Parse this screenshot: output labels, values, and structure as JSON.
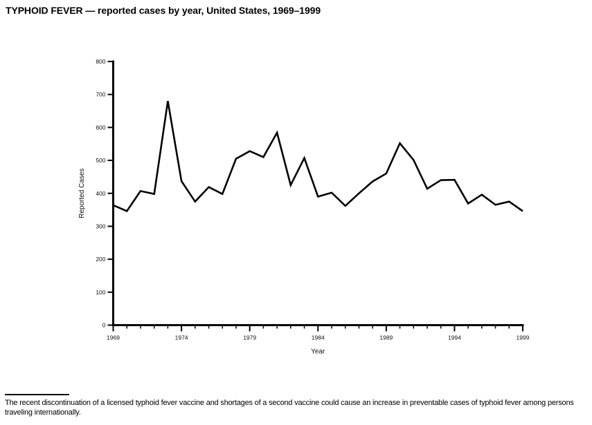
{
  "title": "TYPHOID FEVER — reported cases by year, United States, 1969–1999",
  "footnote": "The recent discontinuation of a licensed typhoid fever vaccine and shortages of a second vaccine could cause an increase in preventable cases of typhoid fever among persons traveling internationally.",
  "chart_data": {
    "type": "line",
    "title": "TYPHOID FEVER — reported cases by year, United States, 1969–1999",
    "xlabel": "Year",
    "ylabel": "Reported Cases",
    "x": [
      1969,
      1970,
      1971,
      1972,
      1973,
      1974,
      1975,
      1976,
      1977,
      1978,
      1979,
      1980,
      1981,
      1982,
      1983,
      1984,
      1985,
      1986,
      1987,
      1988,
      1989,
      1990,
      1991,
      1992,
      1993,
      1994,
      1995,
      1996,
      1997,
      1998,
      1999
    ],
    "values": [
      364,
      346,
      407,
      398,
      680,
      437,
      375,
      419,
      398,
      505,
      528,
      510,
      584,
      425,
      507,
      390,
      402,
      362,
      400,
      436,
      460,
      552,
      501,
      414,
      440,
      441,
      369,
      396,
      365,
      375,
      346
    ],
    "xlim": [
      1969,
      1999
    ],
    "ylim": [
      0,
      800
    ],
    "yticks": [
      0,
      100,
      200,
      300,
      400,
      500,
      600,
      700,
      800
    ],
    "xticks_major": [
      1969,
      1974,
      1979,
      1984,
      1989,
      1994,
      1999
    ],
    "xticks_minor_every": 1,
    "grid": false,
    "legend": "none",
    "line_color": "#000000",
    "series_name": "Reported Cases"
  }
}
